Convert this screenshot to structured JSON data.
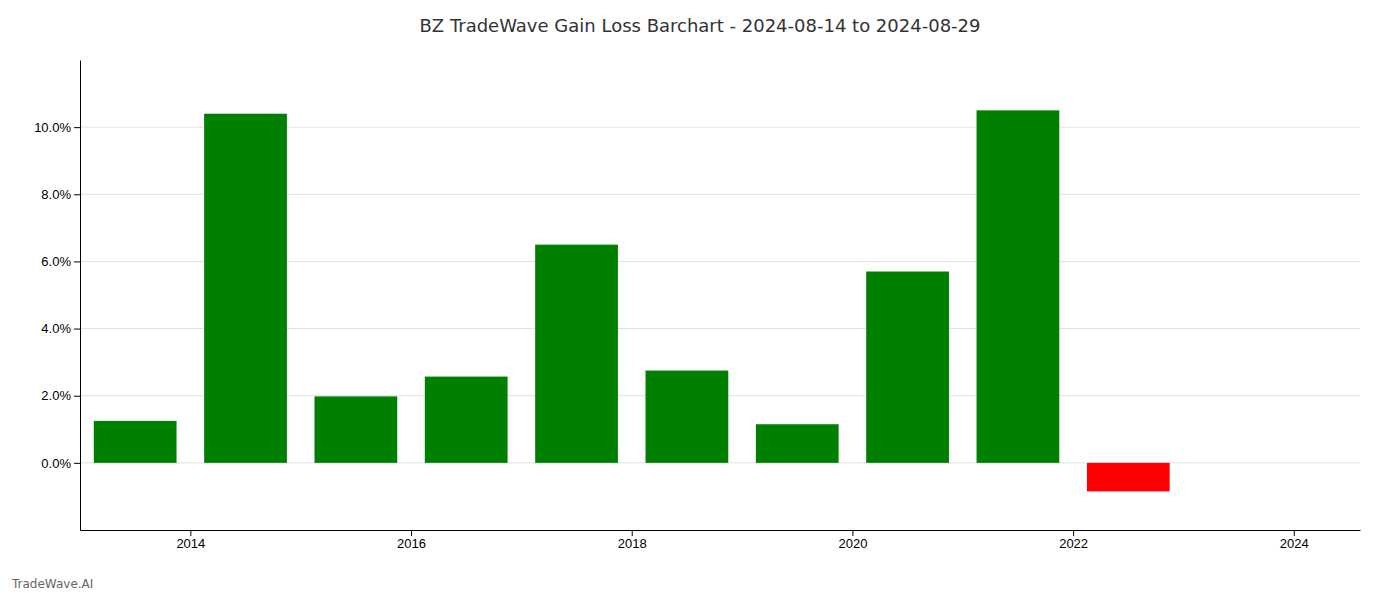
{
  "chart_data": {
    "type": "bar",
    "title": "BZ TradeWave Gain Loss Barchart - 2024-08-14 to 2024-08-29",
    "annotations": [
      "TradeWave.AI"
    ],
    "x": [
      2013.5,
      2014.5,
      2015.5,
      2016.5,
      2017.5,
      2018.5,
      2019.5,
      2020.5,
      2021.5,
      2022.5
    ],
    "values": [
      0.0125,
      0.104,
      0.0198,
      0.0257,
      0.065,
      0.0275,
      0.0115,
      0.057,
      0.105,
      -0.0085
    ],
    "colors": [
      "#008000",
      "#008000",
      "#008000",
      "#008000",
      "#008000",
      "#008000",
      "#008000",
      "#008000",
      "#008000",
      "#ff0000"
    ],
    "xlim": [
      2013.0,
      2024.6
    ],
    "xticks": [
      2014,
      2016,
      2018,
      2020,
      2022,
      2024
    ],
    "ylim": [
      -0.02,
      0.12
    ],
    "yticks": [
      {
        "value": 0.0,
        "label": "0.0%"
      },
      {
        "value": 0.02,
        "label": "2.0%"
      },
      {
        "value": 0.04,
        "label": "4.0%"
      },
      {
        "value": 0.06,
        "label": "6.0%"
      },
      {
        "value": 0.08,
        "label": "8.0%"
      },
      {
        "value": 0.1,
        "label": "10.0%"
      }
    ],
    "grid": true
  }
}
